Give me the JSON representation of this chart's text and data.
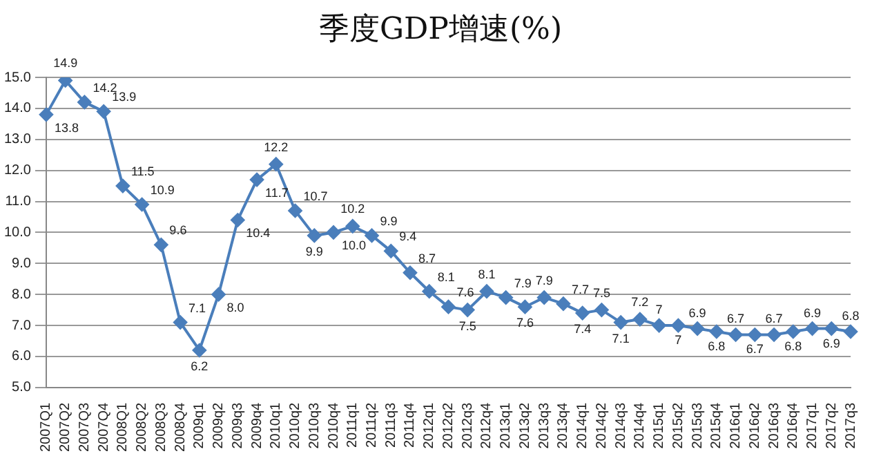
{
  "chart_data": {
    "type": "line",
    "title": "季度GDP增速(%)",
    "categories": [
      "2007Q1",
      "2007Q2",
      "2007Q3",
      "2007Q4",
      "2008Q1",
      "2008Q2",
      "2008Q3",
      "2008Q4",
      "2009q1",
      "2009q2",
      "2009q3",
      "2009q4",
      "2010q1",
      "2010q2",
      "2010q3",
      "2010q4",
      "2011q1",
      "2011q2",
      "2011q3",
      "2011q4",
      "2012q1",
      "2012q2",
      "2012q3",
      "2012q4",
      "2013q1",
      "2013q2",
      "2013q3",
      "2013q4",
      "2014q1",
      "2014q2",
      "2014q3",
      "2014q4",
      "2015q1",
      "2015q2",
      "2015q3",
      "2015q4",
      "2016q1",
      "2016q2",
      "2016q3",
      "2016q4",
      "2017q1",
      "2017q2",
      "2017q3"
    ],
    "series": [
      {
        "color": "#4a7ebb",
        "values": [
          13.8,
          14.9,
          14.2,
          13.9,
          11.5,
          10.9,
          9.6,
          7.1,
          6.2,
          8.0,
          10.4,
          11.7,
          12.2,
          10.7,
          9.9,
          10.0,
          10.2,
          9.9,
          9.4,
          8.7,
          8.1,
          7.6,
          7.5,
          8.1,
          7.9,
          7.6,
          7.9,
          7.7,
          7.4,
          7.5,
          7.1,
          7.2,
          7,
          7,
          6.9,
          6.8,
          6.7,
          6.7,
          6.7,
          6.8,
          6.9,
          6.9,
          6.8
        ],
        "value_labels": [
          "13.8",
          "14.9",
          "14.2",
          "13.9",
          "11.5",
          "10.9",
          "9.6",
          "7.1",
          "6.2",
          "8.0",
          "10.4",
          "11.7",
          "12.2",
          "10.7",
          "9.9",
          "10.0",
          "10.2",
          "9.9",
          "9.4",
          "8.7",
          "8.1",
          "7.6",
          "7.5",
          "8.1",
          "7.9",
          "7.6",
          "7.9",
          "7.7",
          "7.4",
          "7.5",
          "7.1",
          "7.2",
          "7",
          "7",
          "6.9",
          "6.8",
          "6.7",
          "6.7",
          "6.7",
          "6.8",
          "6.9",
          "6.9",
          "6.8"
        ]
      }
    ],
    "ylim": [
      5,
      15
    ],
    "yticks": [
      {
        "value": 5,
        "label": "5.0"
      },
      {
        "value": 6,
        "label": "6.0"
      },
      {
        "value": 7,
        "label": "7.0"
      },
      {
        "value": 8,
        "label": "8.0"
      },
      {
        "value": 9,
        "label": "9.0"
      },
      {
        "value": 10,
        "label": "10.0"
      },
      {
        "value": 11,
        "label": "11.0"
      },
      {
        "value": 12,
        "label": "12.0"
      },
      {
        "value": 13,
        "label": "13.0"
      },
      {
        "value": 14,
        "label": "14.0"
      },
      {
        "value": 15,
        "label": "15.0"
      }
    ],
    "grid": "y",
    "legend": false,
    "marker": "diamond",
    "line_style": "solid"
  }
}
